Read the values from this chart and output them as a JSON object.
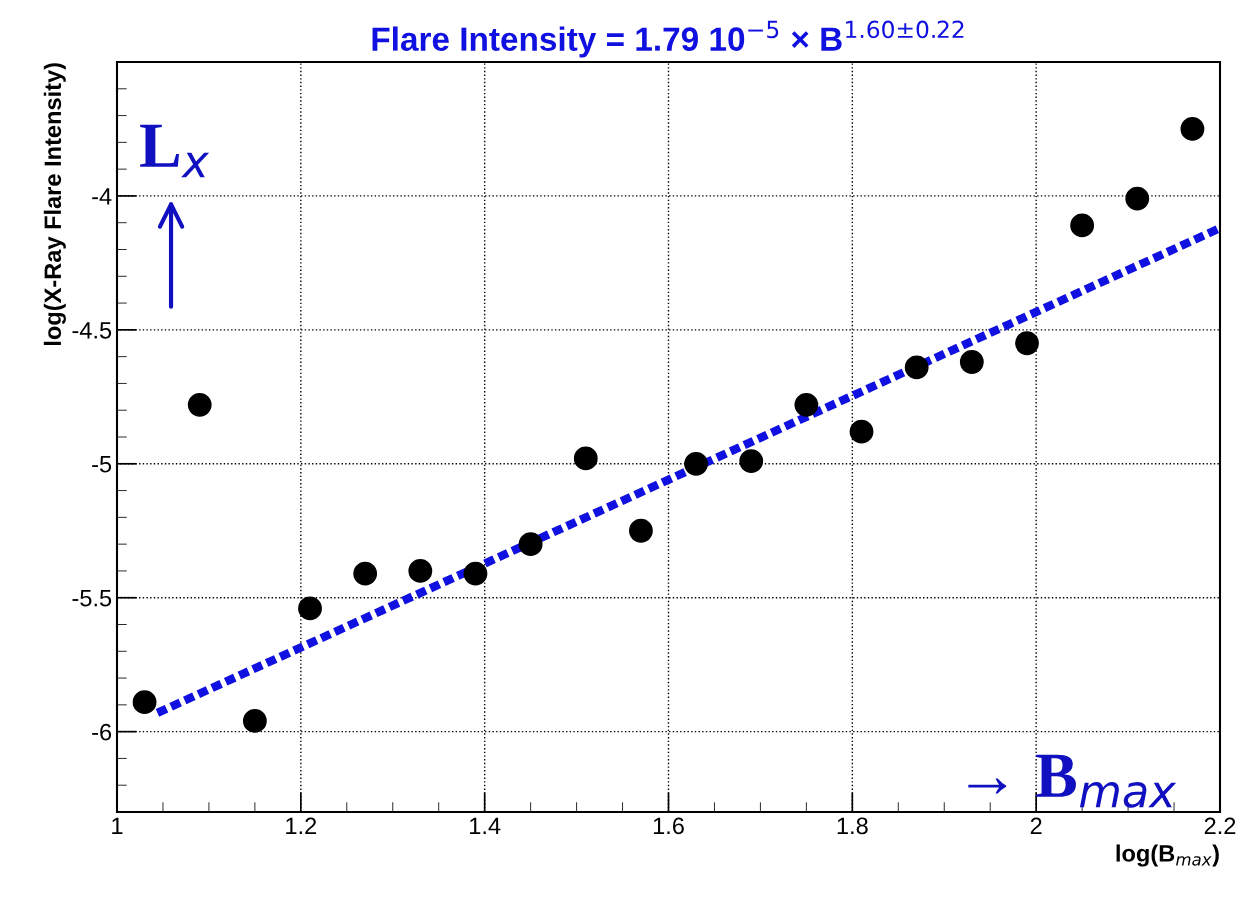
{
  "chart_data": {
    "type": "scatter",
    "title": "Flare Intensity = 1.79 10$^{−5}$ × B$^{1.60±0.22}$",
    "xlabel": "log(B$_{max}$)",
    "ylabel": "log(X-Ray Flare Intensity)",
    "x": [
      1.03,
      1.09,
      1.15,
      1.21,
      1.27,
      1.33,
      1.39,
      1.45,
      1.51,
      1.57,
      1.63,
      1.69,
      1.75,
      1.81,
      1.87,
      1.93,
      1.99,
      2.05,
      2.11,
      2.17
    ],
    "series": [
      {
        "color": "#000000",
        "marker": "circle",
        "values": [
          -5.89,
          -4.78,
          -5.96,
          -5.54,
          -5.41,
          -5.4,
          -5.41,
          -5.3,
          -4.98,
          -5.25,
          -5.0,
          -4.99,
          -4.78,
          -4.88,
          -4.64,
          -4.62,
          -4.55,
          -4.11,
          -4.01,
          -3.75
        ]
      },
      {
        "type": "line",
        "color": "#1010e0",
        "line_style": "dashed",
        "x": [
          1.044,
          2.2
        ],
        "values": [
          -5.93,
          -4.12
        ]
      }
    ],
    "annotations": [
      "L$_{x}$",
      "→ B$_{max}$"
    ],
    "xlim": [
      1,
      2.2
    ],
    "ylim": [
      -6.3,
      -3.5
    ],
    "xticks": [
      1,
      1.2,
      1.4,
      1.6,
      1.8,
      2,
      2.2
    ],
    "yticks": [
      -6,
      -5.5,
      -5,
      -4.5,
      -4
    ],
    "grid": true
  }
}
